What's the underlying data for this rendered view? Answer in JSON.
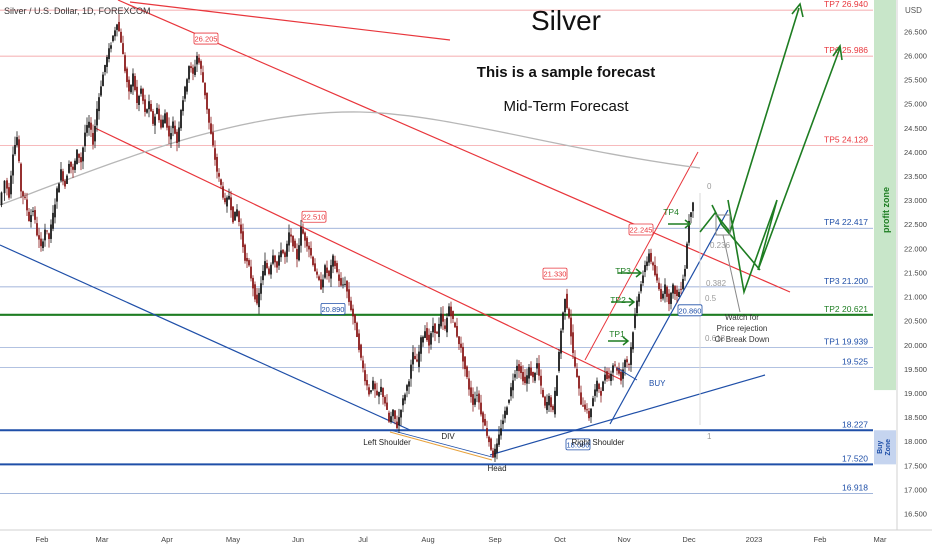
{
  "header": {
    "symbol_label": "Silver / U.S. Dollar, 1D, FOREXCOM",
    "currency": "USD",
    "title": "Silver",
    "subtitle1": "This is a sample forecast",
    "subtitle2": "Mid-Term Forecast"
  },
  "colors": {
    "candle_up": "#1a1a1a",
    "candle_down": "#8b1a1a",
    "target_red": "#e8363c",
    "target_blue": "#1f4fa8",
    "support_green": "#1e7d22",
    "buy_zone_blue": "#1f4fa8",
    "profit_zone_bg": "#c8e6c9"
  },
  "chart_data": {
    "type": "candlestick",
    "x_axis": {
      "labels": [
        "Feb",
        "Mar",
        "Apr",
        "May",
        "Jun",
        "Jul",
        "Aug",
        "Sep",
        "Oct",
        "Nov",
        "Dec",
        "2023",
        "Feb",
        "Mar"
      ]
    },
    "y_axis": {
      "range": [
        16.2,
        27.15
      ],
      "ticks": [
        "16.500",
        "17.000",
        "17.500",
        "18.000",
        "18.500",
        "19.000",
        "19.500",
        "20.000",
        "20.500",
        "21.000",
        "21.500",
        "22.000",
        "22.500",
        "23.000",
        "23.500",
        "24.000",
        "24.500",
        "25.000",
        "25.500",
        "26.000",
        "26.500"
      ]
    },
    "price_path": [
      [
        0,
        22.9
      ],
      [
        6,
        23.4
      ],
      [
        10,
        23.1
      ],
      [
        14,
        24.0
      ],
      [
        18,
        24.3
      ],
      [
        22,
        23.2
      ],
      [
        26,
        23.0
      ],
      [
        30,
        22.6
      ],
      [
        34,
        22.8
      ],
      [
        38,
        22.3
      ],
      [
        42,
        22.0
      ],
      [
        46,
        22.4
      ],
      [
        50,
        22.2
      ],
      [
        54,
        22.7
      ],
      [
        58,
        23.2
      ],
      [
        62,
        23.6
      ],
      [
        66,
        23.3
      ],
      [
        70,
        23.8
      ],
      [
        74,
        23.6
      ],
      [
        78,
        24.0
      ],
      [
        82,
        23.8
      ],
      [
        86,
        24.4
      ],
      [
        90,
        24.6
      ],
      [
        94,
        24.2
      ],
      [
        98,
        24.9
      ],
      [
        102,
        25.4
      ],
      [
        106,
        25.8
      ],
      [
        110,
        26.1
      ],
      [
        114,
        26.4
      ],
      [
        118,
        26.7
      ],
      [
        122,
        26.3
      ],
      [
        126,
        25.7
      ],
      [
        130,
        25.2
      ],
      [
        134,
        25.6
      ],
      [
        138,
        25.0
      ],
      [
        142,
        25.3
      ],
      [
        146,
        24.8
      ],
      [
        150,
        25.0
      ],
      [
        154,
        24.6
      ],
      [
        158,
        24.9
      ],
      [
        162,
        24.5
      ],
      [
        166,
        24.8
      ],
      [
        170,
        24.3
      ],
      [
        174,
        24.6
      ],
      [
        178,
        24.2
      ],
      [
        182,
        24.9
      ],
      [
        186,
        25.3
      ],
      [
        190,
        25.8
      ],
      [
        194,
        25.6
      ],
      [
        198,
        26.0
      ],
      [
        202,
        25.7
      ],
      [
        206,
        25.2
      ],
      [
        210,
        24.6
      ],
      [
        214,
        24.1
      ],
      [
        218,
        23.6
      ],
      [
        222,
        23.3
      ],
      [
        226,
        22.9
      ],
      [
        230,
        23.1
      ],
      [
        234,
        22.6
      ],
      [
        238,
        22.8
      ],
      [
        242,
        22.3
      ],
      [
        246,
        21.8
      ],
      [
        250,
        21.6
      ],
      [
        254,
        21.2
      ],
      [
        258,
        20.8
      ],
      [
        262,
        21.3
      ],
      [
        266,
        21.7
      ],
      [
        270,
        21.5
      ],
      [
        274,
        21.9
      ],
      [
        278,
        21.6
      ],
      [
        282,
        22.0
      ],
      [
        286,
        21.8
      ],
      [
        290,
        22.3
      ],
      [
        294,
        22.1
      ],
      [
        298,
        21.8
      ],
      [
        302,
        22.4
      ],
      [
        306,
        22.2
      ],
      [
        310,
        22.0
      ],
      [
        314,
        21.7
      ],
      [
        318,
        21.4
      ],
      [
        322,
        21.2
      ],
      [
        326,
        21.6
      ],
      [
        330,
        21.4
      ],
      [
        334,
        21.8
      ],
      [
        338,
        21.5
      ],
      [
        342,
        21.2
      ],
      [
        346,
        21.3
      ],
      [
        350,
        20.9
      ],
      [
        354,
        20.6
      ],
      [
        358,
        20.2
      ],
      [
        362,
        19.7
      ],
      [
        366,
        19.3
      ],
      [
        370,
        19.0
      ],
      [
        374,
        19.2
      ],
      [
        378,
        18.9
      ],
      [
        382,
        19.1
      ],
      [
        386,
        18.8
      ],
      [
        390,
        18.4
      ],
      [
        394,
        18.6
      ],
      [
        398,
        18.3
      ],
      [
        402,
        18.7
      ],
      [
        406,
        19.0
      ],
      [
        410,
        19.3
      ],
      [
        414,
        19.8
      ],
      [
        418,
        19.6
      ],
      [
        422,
        20.1
      ],
      [
        426,
        20.3
      ],
      [
        430,
        20.0
      ],
      [
        434,
        20.4
      ],
      [
        438,
        20.2
      ],
      [
        442,
        20.6
      ],
      [
        446,
        20.3
      ],
      [
        450,
        20.8
      ],
      [
        454,
        20.5
      ],
      [
        458,
        20.2
      ],
      [
        462,
        19.9
      ],
      [
        466,
        19.5
      ],
      [
        470,
        19.1
      ],
      [
        474,
        18.8
      ],
      [
        478,
        19.0
      ],
      [
        482,
        18.6
      ],
      [
        486,
        18.3
      ],
      [
        490,
        18.0
      ],
      [
        494,
        17.7
      ],
      [
        498,
        17.9
      ],
      [
        502,
        18.3
      ],
      [
        506,
        18.6
      ],
      [
        510,
        18.9
      ],
      [
        514,
        19.3
      ],
      [
        518,
        19.6
      ],
      [
        522,
        19.4
      ],
      [
        526,
        19.2
      ],
      [
        530,
        19.5
      ],
      [
        534,
        19.3
      ],
      [
        538,
        19.6
      ],
      [
        542,
        19.1
      ],
      [
        546,
        18.7
      ],
      [
        550,
        18.9
      ],
      [
        554,
        18.6
      ],
      [
        558,
        19.4
      ],
      [
        562,
        20.3
      ],
      [
        566,
        21.0
      ],
      [
        570,
        20.6
      ],
      [
        574,
        19.8
      ],
      [
        578,
        19.3
      ],
      [
        582,
        18.8
      ],
      [
        586,
        18.7
      ],
      [
        590,
        18.5
      ],
      [
        594,
        18.9
      ],
      [
        598,
        19.2
      ],
      [
        602,
        19.0
      ],
      [
        606,
        19.4
      ],
      [
        610,
        19.3
      ],
      [
        614,
        19.6
      ],
      [
        618,
        19.5
      ],
      [
        622,
        19.3
      ],
      [
        626,
        19.7
      ],
      [
        630,
        19.6
      ],
      [
        634,
        20.3
      ],
      [
        638,
        20.9
      ],
      [
        642,
        21.3
      ],
      [
        646,
        21.6
      ],
      [
        650,
        21.9
      ],
      [
        654,
        21.6
      ],
      [
        658,
        21.3
      ],
      [
        662,
        21.0
      ],
      [
        666,
        21.2
      ],
      [
        670,
        20.9
      ],
      [
        674,
        21.2
      ],
      [
        678,
        21.0
      ],
      [
        682,
        21.2
      ],
      [
        686,
        21.6
      ],
      [
        690,
        22.6
      ],
      [
        694,
        23.0
      ]
    ],
    "price_levels": [
      {
        "name": "TP7",
        "value": 26.94,
        "label": "TP7  26.940",
        "color": "red"
      },
      {
        "name": "TP6",
        "value": 25.986,
        "label": "TP6  25.986",
        "color": "red"
      },
      {
        "name": "TP5",
        "value": 24.129,
        "label": "TP5  24.129",
        "color": "red"
      },
      {
        "name": "TP4",
        "value": 22.417,
        "label": "TP4  22.417",
        "color": "blue"
      },
      {
        "name": "TP3",
        "value": 21.2,
        "label": "TP3  21.200",
        "color": "blue"
      },
      {
        "name": "TP2",
        "value": 20.621,
        "label": "TP2  20.621",
        "color": "green"
      },
      {
        "name": "TP1",
        "value": 19.939,
        "label": "TP1  19.939",
        "color": "blue"
      },
      {
        "name": "L1",
        "value": 19.525,
        "label": "19.525",
        "color": "blue"
      },
      {
        "name": "L2",
        "value": 18.227,
        "label": "18.227",
        "color": "blue"
      },
      {
        "name": "L3",
        "value": 17.52,
        "label": "17.520",
        "color": "blue"
      },
      {
        "name": "L4",
        "value": 16.918,
        "label": "16.918",
        "color": "blue"
      }
    ],
    "price_tags": [
      {
        "text": "26.205",
        "value": 26.205,
        "color": "red"
      },
      {
        "text": "22.510",
        "value": 22.51,
        "color": "red"
      },
      {
        "text": "20.890",
        "value": 20.89,
        "color": "blue"
      },
      {
        "text": "21.330",
        "value": 21.33,
        "color": "red"
      },
      {
        "text": "22.245",
        "value": 22.245,
        "color": "red"
      },
      {
        "text": "20.860",
        "value": 20.86,
        "color": "blue"
      },
      {
        "text": "18.080",
        "value": 18.08,
        "color": "blue"
      }
    ],
    "fib_labels": [
      "0",
      "0.236",
      "0.382",
      "0.5",
      "0.618",
      "1"
    ],
    "annotations": [
      "Left Shoulder",
      "Head",
      "Right Shoulder",
      "DIV",
      "BUY",
      "TP1",
      "TP2",
      "TP3",
      "TP4",
      "Watch for",
      "Price rejection",
      "Or Break Down"
    ],
    "zones": [
      {
        "name": "profit zone",
        "from": 19.06,
        "to": 27.15
      },
      {
        "name": "Buy Zone",
        "from": 17.52,
        "to": 18.227
      }
    ]
  }
}
